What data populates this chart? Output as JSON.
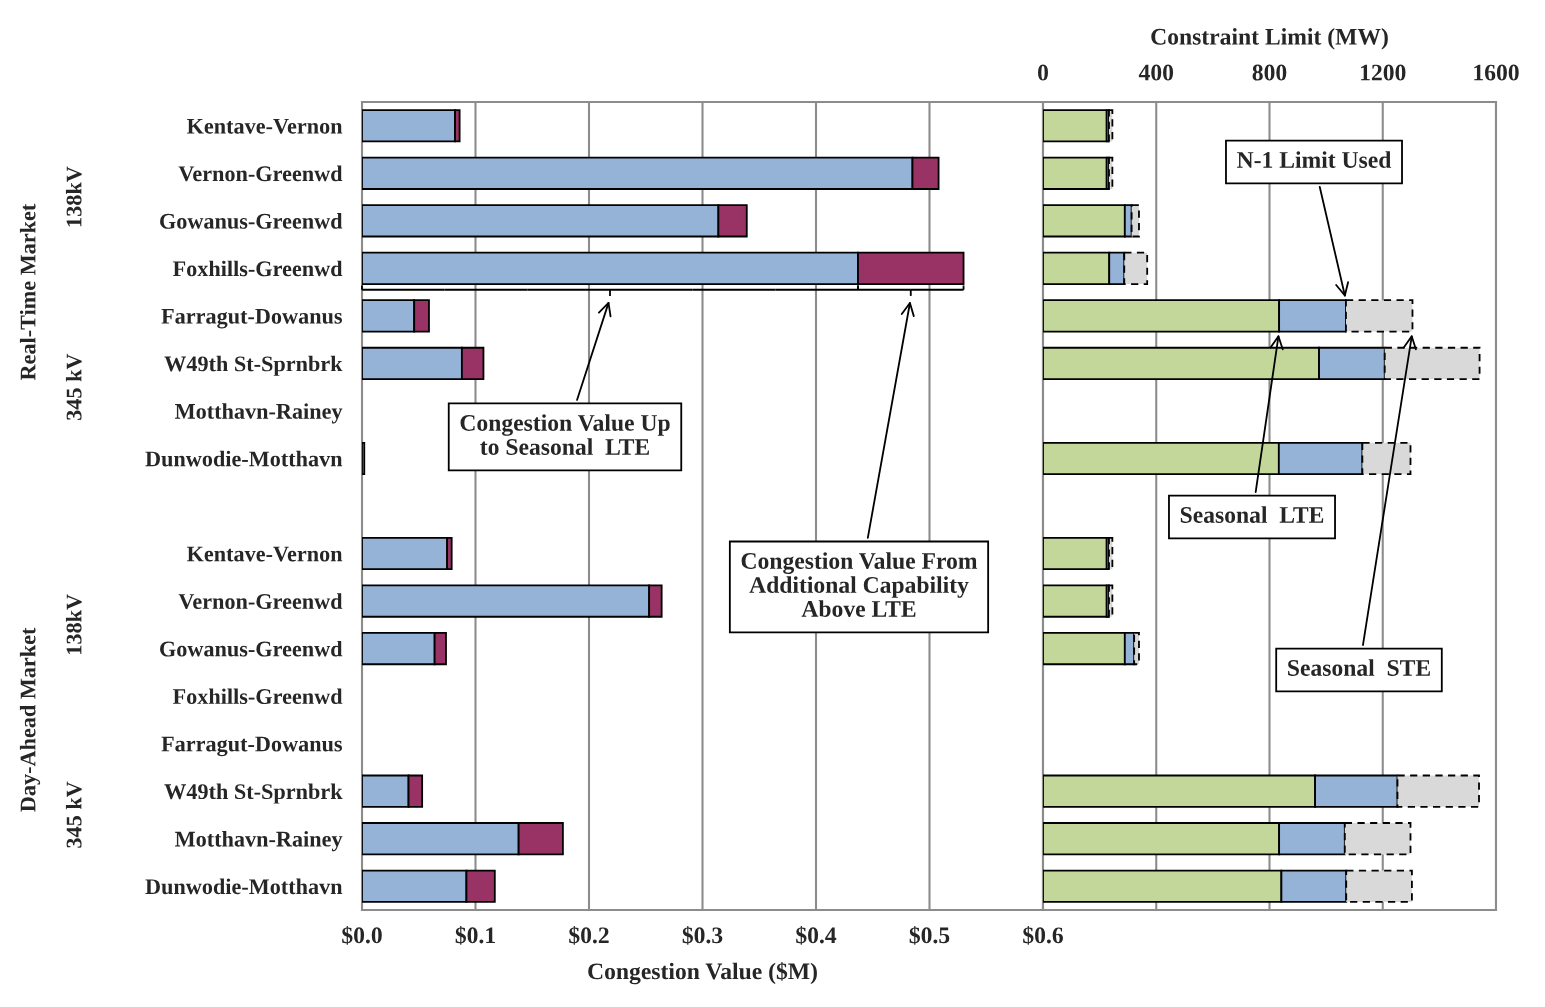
{
  "chart_data": [
    {
      "type": "bar",
      "orientation": "horizontal",
      "stacked": true,
      "xlabel": "Congestion Value ($M)",
      "categories": [
        "Kentave-Vernon",
        "Vernon-Greenwd",
        "Gowanus-Greenwd",
        "Foxhills-Greenwd",
        "Farragut-Dowanus",
        "W49th St-Sprnbrk",
        "Motthavn-Rainey",
        "Dunwodie-Motthavn",
        null,
        "Kentave-Vernon",
        "Vernon-Greenwd",
        "Gowanus-Greenwd",
        "Foxhills-Greenwd",
        "Farragut-Dowanus",
        "W49th St-Sprnbrk",
        "Motthavn-Rainey",
        "Dunwodie-Motthavn"
      ],
      "series": [
        {
          "color": "#95b3d7",
          "values": [
            0.082,
            0.485,
            0.314,
            0.437,
            0.046,
            0.088,
            null,
            0.002,
            null,
            0.075,
            0.253,
            0.064,
            null,
            null,
            0.041,
            0.138,
            0.092
          ]
        },
        {
          "color": "#993366",
          "values": [
            0.004,
            0.023,
            0.025,
            0.093,
            0.013,
            0.019,
            null,
            null,
            null,
            0.004,
            0.011,
            0.01,
            null,
            null,
            0.012,
            0.039,
            0.025
          ]
        }
      ],
      "xlim": [
        0,
        0.6
      ],
      "xticks": [
        {
          "value": 0,
          "label": "$0.0"
        },
        {
          "value": 0.1,
          "label": "$0.1"
        },
        {
          "value": 0.2,
          "label": "$0.2"
        },
        {
          "value": 0.3,
          "label": "$0.3"
        },
        {
          "value": 0.4,
          "label": "$0.4"
        },
        {
          "value": 0.5,
          "label": "$0.5"
        },
        {
          "value": 0.6,
          "label": "$0.6"
        }
      ],
      "grid": "x",
      "annotations": [
        "Real-Time Market",
        "138kV",
        "345 kV",
        "Day-Ahead Market",
        "138kV",
        "345 kV",
        "Congestion Value Up\nto Seasonal  LTE",
        "Congestion Value From\nAdditional Capability\nAbove LTE"
      ]
    },
    {
      "type": "bar",
      "orientation": "horizontal",
      "stacked": true,
      "xlabel": "Constraint Limit (MW)",
      "categories": [
        null,
        null,
        null,
        null,
        null,
        null,
        null,
        null,
        null,
        null,
        null,
        null,
        null,
        null,
        null,
        null,
        null
      ],
      "series": [
        {
          "color": "#c4d79b",
          "values": [
            225,
            225,
            289,
            234,
            834,
            975,
            null,
            833,
            null,
            225,
            225,
            289,
            null,
            null,
            961,
            834,
            842
          ]
        },
        {
          "color": "#95b3d7",
          "values": [
            8,
            8,
            24,
            53,
            236,
            232,
            null,
            295,
            null,
            8,
            8,
            33,
            null,
            null,
            291,
            232,
            229
          ]
        },
        {
          "color": "#d9d9d9",
          "line_style": "dashed",
          "values": [
            12,
            12,
            26,
            81,
            235,
            335,
            null,
            170,
            null,
            12,
            12,
            17,
            null,
            null,
            288,
            232,
            232
          ]
        }
      ],
      "xlim": [
        0,
        1600
      ],
      "xticks": [
        0,
        400,
        800,
        1200,
        1600
      ],
      "grid": "x",
      "tick_labels": "x",
      "annotations": [
        "N-1 Limit Used",
        "Seasonal  LTE",
        "Seasonal  STE"
      ]
    }
  ]
}
